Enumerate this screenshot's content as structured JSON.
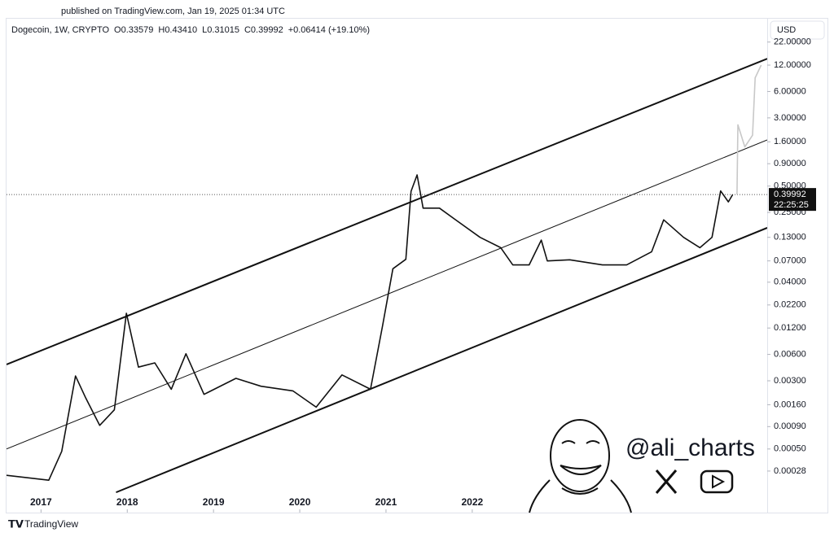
{
  "chart_data": {
    "type": "line",
    "published": "published on TradingView.com, Jan 19, 2025 01:34 UTC",
    "header": [
      "Dogecoin, 1W, CRYPTO",
      "O0.33579",
      "H0.43410",
      "L0.31015",
      "C0.39992",
      "+0.06414 (+19.10%)"
    ],
    "currency": "USD",
    "watermark": "@ali_charts",
    "brand": "TradingView",
    "log_scale": true,
    "xlim": [
      2016.6,
      2025.42
    ],
    "xticks": [
      2017,
      2018,
      2019,
      2020,
      2021,
      2022
    ],
    "ylim": [
      9.4e-05,
      22.8
    ],
    "yticks": [
      {
        "value": 22,
        "label": "22.00000"
      },
      {
        "value": 12,
        "label": "12.00000"
      },
      {
        "value": 6,
        "label": "6.00000"
      },
      {
        "value": 3,
        "label": "3.00000"
      },
      {
        "value": 1.6,
        "label": "1.60000"
      },
      {
        "value": 0.9,
        "label": "0.90000"
      },
      {
        "value": 0.5,
        "label": "0.50000"
      },
      {
        "value": 0.25,
        "label": "0.25000"
      },
      {
        "value": 0.13,
        "label": "0.13000"
      },
      {
        "value": 0.07,
        "label": "0.07000"
      },
      {
        "value": 0.04,
        "label": "0.04000"
      },
      {
        "value": 0.022,
        "label": "0.02200"
      },
      {
        "value": 0.012,
        "label": "0.01200"
      },
      {
        "value": 0.006,
        "label": "0.00600"
      },
      {
        "value": 0.003,
        "label": "0.00300"
      },
      {
        "value": 0.0016,
        "label": "0.00160"
      },
      {
        "value": 0.0009,
        "label": "0.00090"
      },
      {
        "value": 0.0005,
        "label": "0.00050"
      },
      {
        "value": 0.00028,
        "label": "0.00028"
      }
    ],
    "series": [
      {
        "color": "#111111",
        "x": [
          2016.6,
          2017.09,
          2017.24,
          2017.4,
          2017.52,
          2017.68,
          2017.85,
          2017.99,
          2018.13,
          2018.32,
          2018.51,
          2018.68,
          2018.89,
          2019.26,
          2019.55,
          2019.92,
          2020.19,
          2020.49,
          2020.82,
          2020.96,
          2021.08,
          2021.23,
          2021.29,
          2021.36,
          2021.43,
          2021.62,
          2021.81,
          2022.09,
          2022.33,
          2022.47,
          2022.66,
          2022.8,
          2022.87,
          2023.13,
          2023.51,
          2023.79,
          2024.08,
          2024.22,
          2024.45,
          2024.64,
          2024.78,
          2024.88,
          2024.97,
          2025.02
        ],
        "values": [
          0.00025,
          0.00022,
          0.00047,
          0.0034,
          0.0019,
          0.00093,
          0.0014,
          0.0177,
          0.0043,
          0.0048,
          0.0024,
          0.0061,
          0.0021,
          0.0032,
          0.0026,
          0.0023,
          0.0015,
          0.0035,
          0.0024,
          0.0127,
          0.057,
          0.073,
          0.436,
          0.67,
          0.28,
          0.28,
          0.205,
          0.13,
          0.099,
          0.063,
          0.063,
          0.121,
          0.07,
          0.072,
          0.063,
          0.063,
          0.089,
          0.206,
          0.13,
          0.099,
          0.13,
          0.44,
          0.33,
          0.4
        ]
      },
      {
        "color": "#c8c8c8",
        "x": [
          2025.07,
          2025.08,
          2025.16,
          2025.25,
          2025.28,
          2025.35
        ],
        "values": [
          0.4,
          2.5,
          1.4,
          1.9,
          8.6,
          12
        ]
      }
    ],
    "channels": [
      {
        "x": [
          2016.6,
          2025.42
        ],
        "values": [
          0.0046,
          14.2
        ],
        "width": 2
      },
      {
        "x": [
          2016.6,
          2025.42
        ],
        "values": [
          0.0005,
          1.68
        ],
        "width": 1
      },
      {
        "x": [
          2017.87,
          2025.42
        ],
        "values": [
          0.00016,
          0.167
        ],
        "width": 2
      }
    ],
    "last_price": 0.39992,
    "countdown": "22:25:25"
  }
}
